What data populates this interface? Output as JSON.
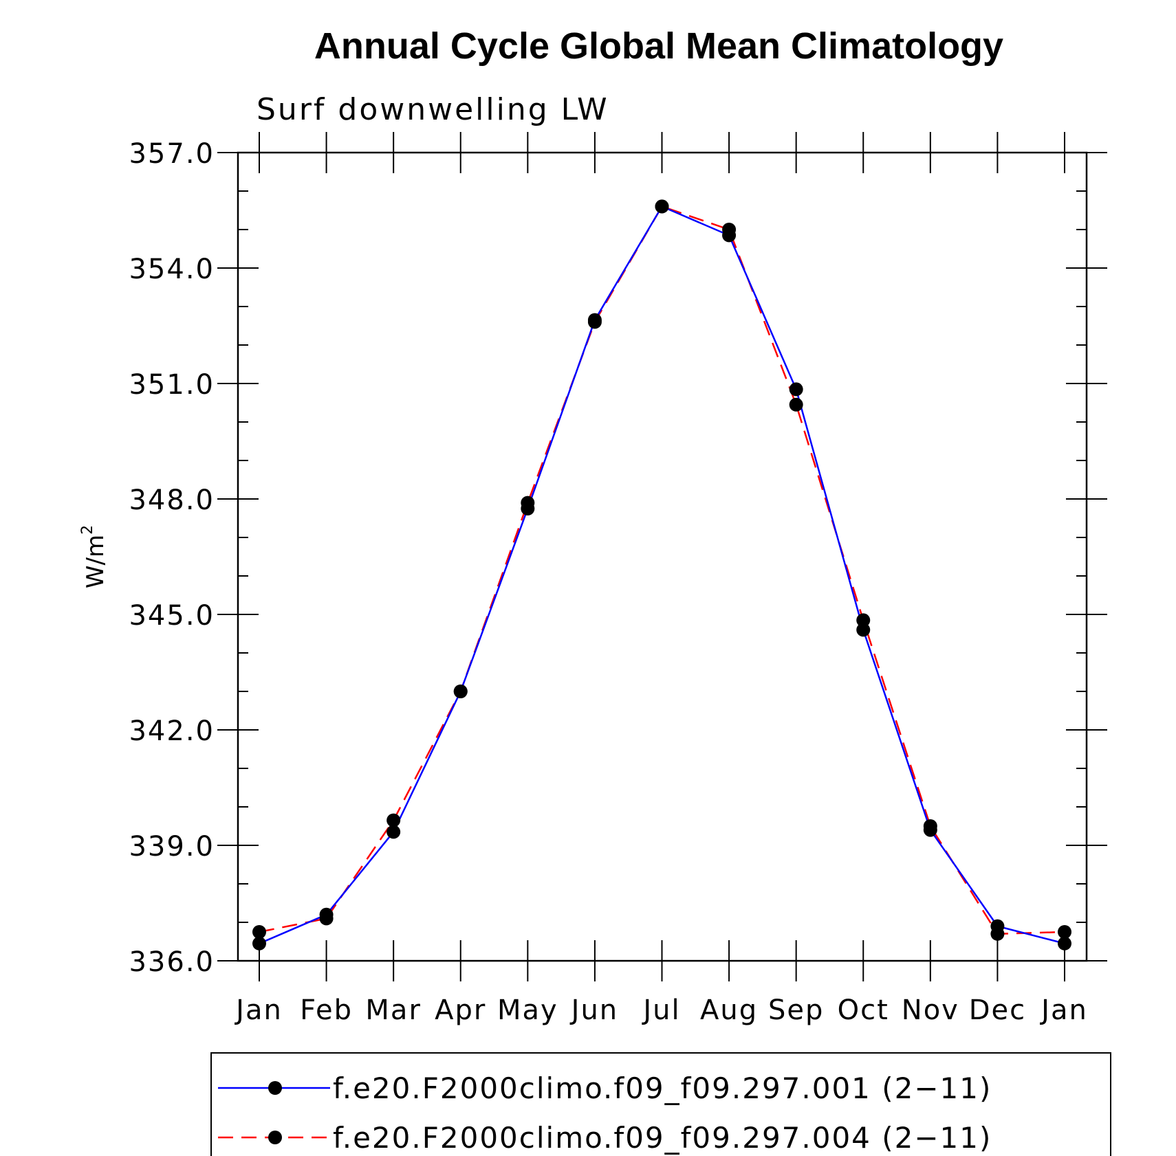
{
  "chart_data": {
    "type": "line",
    "title": "Annual Cycle Global Mean Climatology",
    "subtitle": "Surf downwelling LW",
    "ylabel": "W/m",
    "ylabel_superscript": "2",
    "x": [
      "Jan",
      "Feb",
      "Mar",
      "Apr",
      "May",
      "Jun",
      "Jul",
      "Aug",
      "Sep",
      "Oct",
      "Nov",
      "Dec",
      "Jan"
    ],
    "yticks": [
      "336.0",
      "339.0",
      "342.0",
      "345.0",
      "348.0",
      "351.0",
      "354.0",
      "357.0"
    ],
    "ylim": [
      336.0,
      357.0
    ],
    "legend_position": "bottom",
    "series": [
      {
        "name": "f.e20.F2000climo.f09_f09.297.001 (2−11)",
        "color": "#0000ff",
        "line_style": "solid",
        "marker": "filled-circle",
        "values": [
          336.45,
          337.2,
          339.35,
          343.0,
          347.75,
          352.65,
          355.6,
          354.85,
          350.85,
          344.6,
          339.4,
          336.9,
          336.45
        ]
      },
      {
        "name": "f.e20.F2000climo.f09_f09.297.004 (2−11)",
        "color": "#ff0000",
        "line_style": "dashed",
        "marker": "filled-circle",
        "values": [
          336.75,
          337.1,
          339.65,
          343.0,
          347.9,
          352.6,
          355.6,
          355.0,
          350.45,
          344.85,
          339.5,
          336.7,
          336.75
        ]
      }
    ]
  }
}
